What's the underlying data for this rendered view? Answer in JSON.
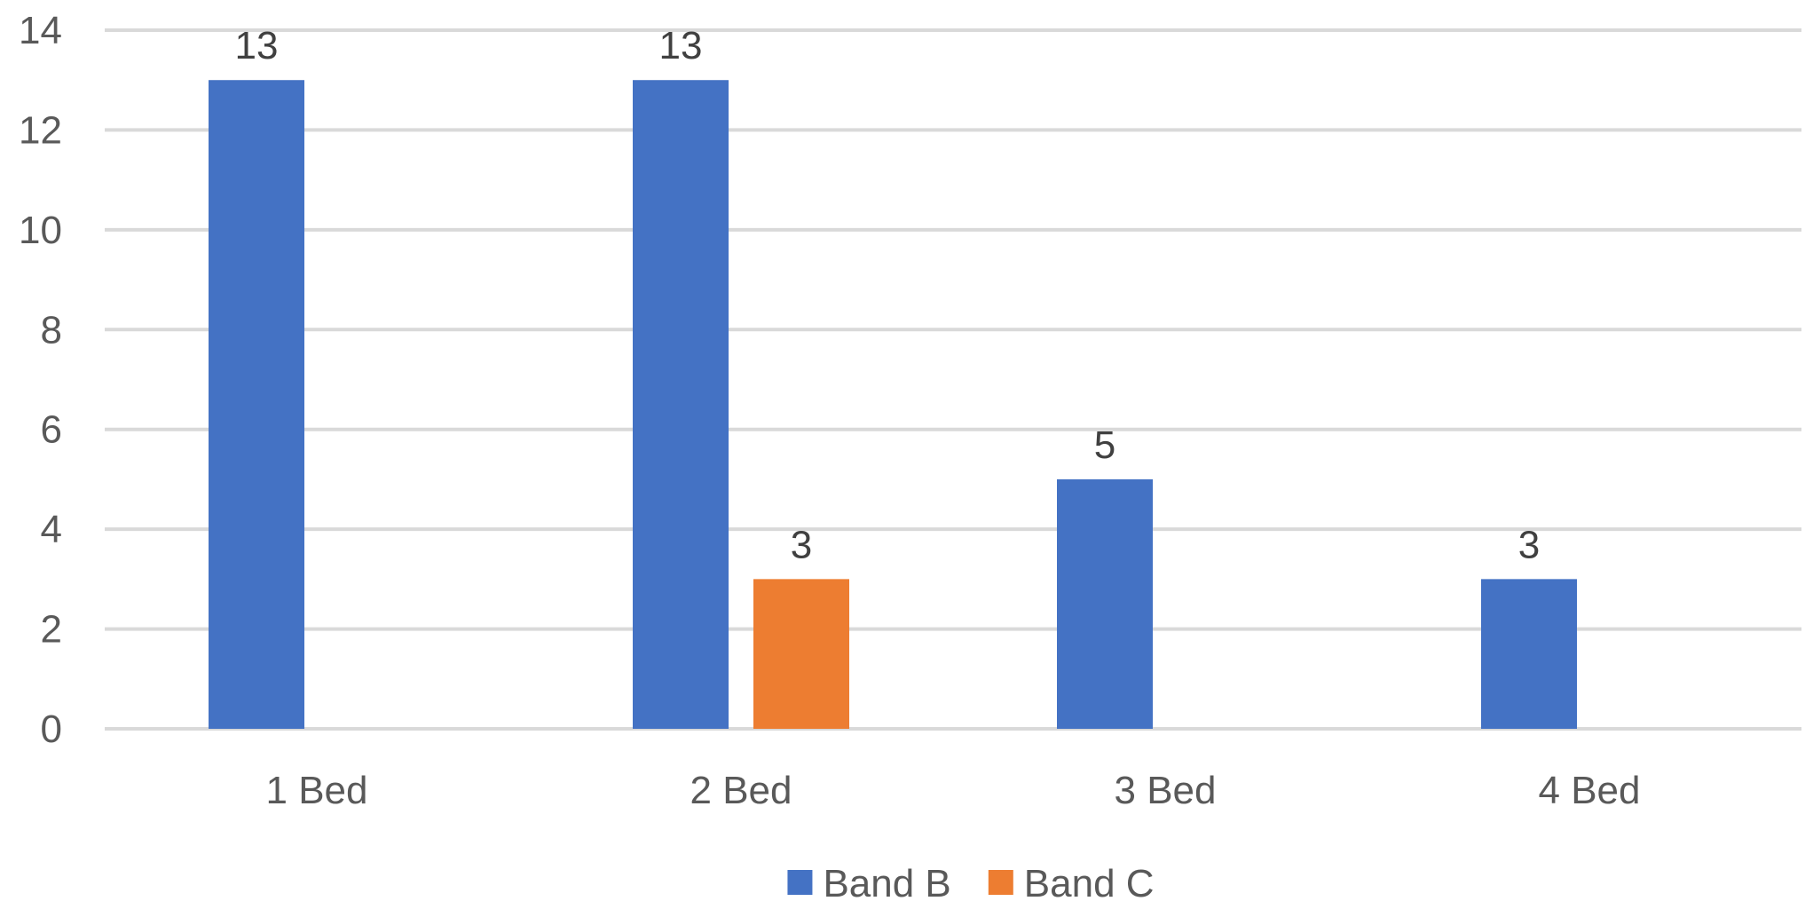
{
  "chart_data": {
    "type": "bar",
    "title": "",
    "xlabel": "",
    "ylabel": "",
    "categories": [
      "1 Bed",
      "2 Bed",
      "3 Bed",
      "4 Bed"
    ],
    "series": [
      {
        "name": "Band B",
        "color": "#4472c4",
        "values": [
          13,
          13,
          5,
          3
        ]
      },
      {
        "name": "Band C",
        "color": "#ed7d31",
        "values": [
          null,
          3,
          null,
          null
        ]
      }
    ],
    "ylim": [
      0,
      14
    ],
    "yticks": [
      0,
      2,
      4,
      6,
      8,
      10,
      12,
      14
    ],
    "grid": true,
    "legend_position": "bottom",
    "data_labels": true
  }
}
